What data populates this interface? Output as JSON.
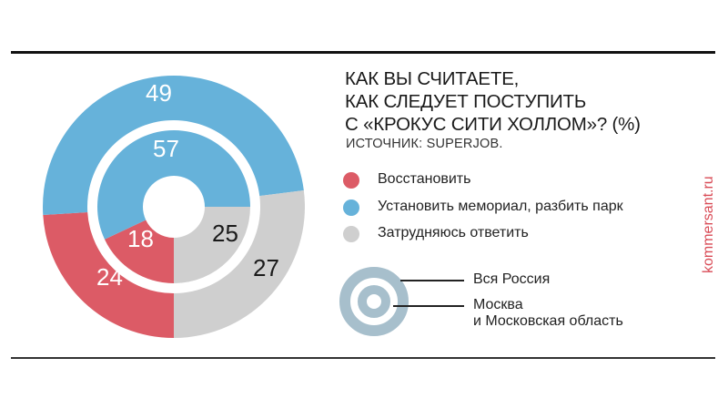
{
  "header": {
    "title_lines": [
      "КАК ВЫ СЧИТАЕТЕ,",
      "КАК СЛЕДУЕТ ПОСТУПИТЬ",
      "С «КРОКУС СИТИ ХОЛЛОМ»? (%)"
    ],
    "source": "ИСТОЧНИК: SUPERJOB."
  },
  "legend": {
    "items": [
      {
        "label": "Восстановить",
        "color": "#dc5b66"
      },
      {
        "label": "Установить мемориал, разбить парк",
        "color": "#66b2da"
      },
      {
        "label": "Затрудняюсь ответить",
        "color": "#cfcfcf"
      }
    ]
  },
  "rings_key": {
    "outer_label": "Вся Россия",
    "inner_label_line1": "Москва",
    "inner_label_line2": "и Московская область",
    "color": "#a7bfcc"
  },
  "brand": "kommersant.ru",
  "chart_data": {
    "type": "pie",
    "subtype": "nested-donut",
    "title": "Как вы считаете, как следует поступить с «Крокус Сити Холлом»? (%)",
    "source": "Источник: SuperJob.",
    "categories": [
      "Восстановить",
      "Установить мемориал, разбить парк",
      "Затрудняюсь ответить"
    ],
    "colors": [
      "#dc5b66",
      "#66b2da",
      "#cfcfcf"
    ],
    "series": [
      {
        "name": "Вся Россия",
        "ring": "outer",
        "values": [
          24,
          49,
          27
        ]
      },
      {
        "name": "Москва и Московская область",
        "ring": "inner",
        "values": [
          18,
          57,
          25
        ]
      }
    ],
    "start_angle": "bottom (6 o'clock), clockwise",
    "legend_position": "right"
  }
}
